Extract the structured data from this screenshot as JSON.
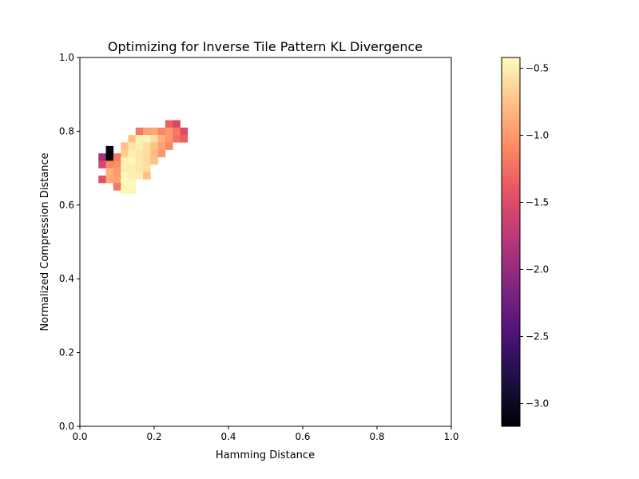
{
  "chart_data": {
    "type": "heatmap",
    "title": "Optimizing for Inverse Tile Pattern KL Divergence",
    "xlabel": "Hamming Distance",
    "ylabel": "Normalized Compression Distance",
    "xlim": [
      0,
      1
    ],
    "ylim": [
      0,
      1
    ],
    "xticks": [
      "0.0",
      "0.2",
      "0.4",
      "0.6",
      "0.8",
      "1.0"
    ],
    "yticks": [
      "0.0",
      "0.2",
      "0.4",
      "0.6",
      "0.8",
      "1.0"
    ],
    "grid": false,
    "colormap": "magma",
    "colorbar": {
      "range": [
        -3.17,
        -0.42
      ],
      "ticks": [
        "-0.5",
        "-1.0",
        "-1.5",
        "-2.0",
        "-2.5",
        "-3.0"
      ],
      "tick_values": [
        -0.5,
        -1.0,
        -1.5,
        -2.0,
        -2.5,
        -3.0
      ],
      "position": "right"
    },
    "bin_size": 0.02,
    "cells": [
      [
        0.24,
        0.82,
        -1.35
      ],
      [
        0.26,
        0.82,
        -1.55
      ],
      [
        0.16,
        0.8,
        -1.2
      ],
      [
        0.18,
        0.8,
        -0.95
      ],
      [
        0.2,
        0.8,
        -0.9
      ],
      [
        0.22,
        0.8,
        -1.1
      ],
      [
        0.24,
        0.8,
        -1.0
      ],
      [
        0.26,
        0.8,
        -1.2
      ],
      [
        0.28,
        0.8,
        -1.5
      ],
      [
        0.14,
        0.78,
        -0.75
      ],
      [
        0.16,
        0.78,
        -0.5
      ],
      [
        0.18,
        0.78,
        -0.45
      ],
      [
        0.2,
        0.78,
        -0.6
      ],
      [
        0.22,
        0.78,
        -0.85
      ],
      [
        0.24,
        0.78,
        -1.0
      ],
      [
        0.26,
        0.78,
        -1.25
      ],
      [
        0.28,
        0.78,
        -1.35
      ],
      [
        0.12,
        0.76,
        -0.75
      ],
      [
        0.14,
        0.76,
        -0.55
      ],
      [
        0.16,
        0.76,
        -0.5
      ],
      [
        0.18,
        0.76,
        -0.6
      ],
      [
        0.2,
        0.76,
        -0.75
      ],
      [
        0.22,
        0.76,
        -0.95
      ],
      [
        0.24,
        0.76,
        -1.1
      ],
      [
        0.08,
        0.75,
        -3.1
      ],
      [
        0.12,
        0.74,
        -0.7
      ],
      [
        0.14,
        0.74,
        -0.5
      ],
      [
        0.16,
        0.74,
        -0.55
      ],
      [
        0.18,
        0.74,
        -0.6
      ],
      [
        0.2,
        0.74,
        -0.8
      ],
      [
        0.22,
        0.74,
        -1.0
      ],
      [
        0.06,
        0.73,
        -1.9
      ],
      [
        0.08,
        0.73,
        -3.17
      ],
      [
        0.1,
        0.73,
        -1.2
      ],
      [
        0.12,
        0.72,
        -0.5
      ],
      [
        0.14,
        0.72,
        -0.45
      ],
      [
        0.16,
        0.72,
        -0.55
      ],
      [
        0.18,
        0.72,
        -0.6
      ],
      [
        0.2,
        0.72,
        -0.75
      ],
      [
        0.06,
        0.71,
        -1.55
      ],
      [
        0.08,
        0.71,
        -1.1
      ],
      [
        0.1,
        0.71,
        -1.05
      ],
      [
        0.12,
        0.7,
        -0.5
      ],
      [
        0.14,
        0.7,
        -0.5
      ],
      [
        0.16,
        0.7,
        -0.55
      ],
      [
        0.18,
        0.7,
        -0.6
      ],
      [
        0.08,
        0.69,
        -0.85
      ],
      [
        0.1,
        0.69,
        -1.0
      ],
      [
        0.12,
        0.68,
        -0.45
      ],
      [
        0.14,
        0.68,
        -0.5
      ],
      [
        0.16,
        0.68,
        -0.5
      ],
      [
        0.18,
        0.68,
        -0.75
      ],
      [
        0.06,
        0.67,
        -1.45
      ],
      [
        0.08,
        0.67,
        -0.9
      ],
      [
        0.1,
        0.67,
        -0.95
      ],
      [
        0.12,
        0.66,
        -0.45
      ],
      [
        0.14,
        0.66,
        -0.45
      ],
      [
        0.1,
        0.65,
        -1.2
      ],
      [
        0.12,
        0.64,
        -0.45
      ],
      [
        0.14,
        0.64,
        -0.45
      ]
    ]
  }
}
